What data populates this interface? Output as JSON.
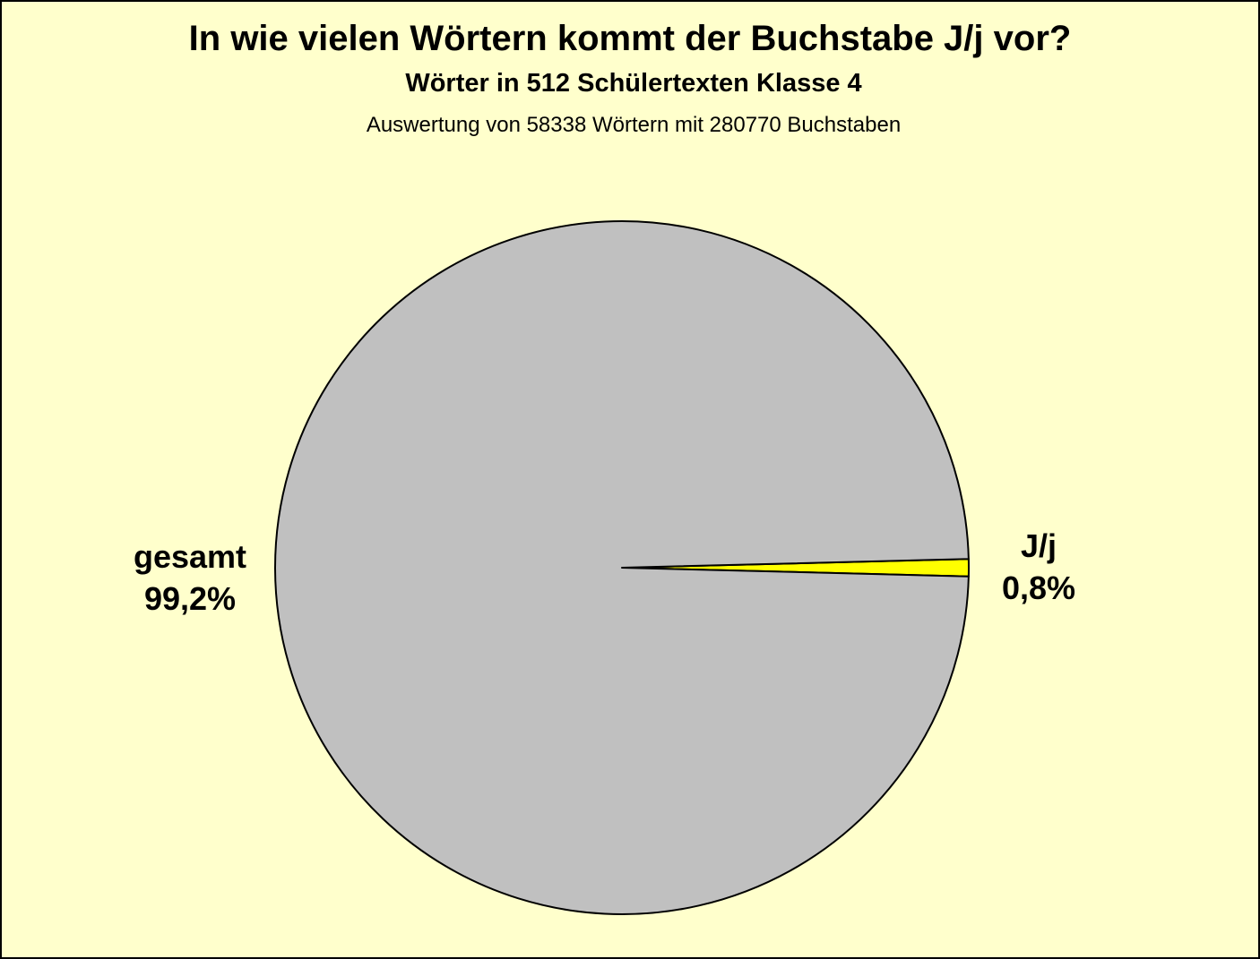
{
  "chart_data": {
    "type": "pie",
    "title": "In wie vielen Wörtern kommt der Buchstabe J/j vor?",
    "subtitle": "Wörter in 512 Schülertexten Klasse 4",
    "note": "Auswertung von 58338 Wörtern mit 280770 Buchstaben",
    "slices": [
      {
        "label": "J/j",
        "value": 0.8,
        "value_label": "0,8%",
        "color": "#ffff00"
      },
      {
        "label": "gesamt",
        "value": 99.2,
        "value_label": "99,2%",
        "color": "#c0c0c0"
      }
    ],
    "background": "#ffffcc",
    "outline_color": "#000000"
  }
}
